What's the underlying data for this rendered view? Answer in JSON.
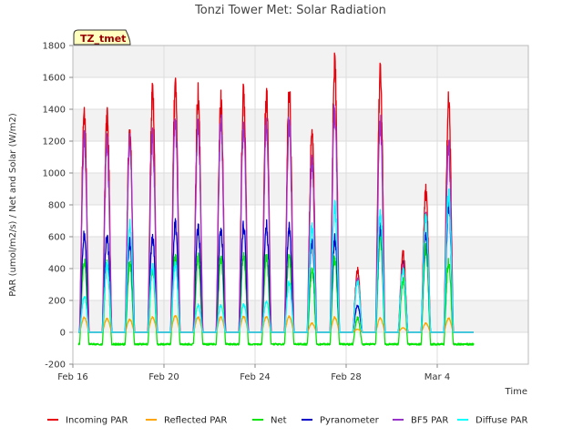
{
  "chart_data": {
    "type": "line",
    "title": "Tonzi Tower Met: Solar Radiation",
    "xlabel": "Time",
    "ylabel": "PAR (umol/m2/s) / Net and Solar (W/m2)",
    "annotation": "TZ_tmet",
    "x_range_days": [
      0,
      20
    ],
    "ylim": [
      -200,
      1800
    ],
    "yticks": [
      -200,
      0,
      200,
      400,
      600,
      800,
      1000,
      1200,
      1400,
      1600,
      1800
    ],
    "xticks": [
      {
        "day": 0,
        "label": "Feb 16"
      },
      {
        "day": 4,
        "label": "Feb 20"
      },
      {
        "day": 8,
        "label": "Feb 24"
      },
      {
        "day": 12,
        "label": "Feb 28"
      },
      {
        "day": 16,
        "label": "Mar 4"
      }
    ],
    "grid": true,
    "legend_position": "bottom",
    "series": [
      {
        "name": "Incoming PAR",
        "color": "#e8000b",
        "daily_peak": [
          1500,
          1440,
          1350,
          1580,
          1630,
          1580,
          1530,
          1590,
          1590,
          1610,
          1310,
          1760,
          410,
          1720,
          520,
          940,
          1530
        ]
      },
      {
        "name": "Reflected PAR",
        "color": "#ffa500",
        "daily_peak": [
          100,
          90,
          85,
          100,
          110,
          100,
          100,
          105,
          105,
          105,
          60,
          100,
          20,
          95,
          30,
          60,
          95
        ]
      },
      {
        "name": "Net",
        "color": "#00e600",
        "daily_peak": [
          480,
          460,
          460,
          420,
          510,
          500,
          500,
          520,
          510,
          510,
          420,
          500,
          100,
          640,
          350,
          560,
          480
        ],
        "night_value": -75
      },
      {
        "name": "Pyranometer",
        "color": "#0000cc",
        "daily_peak": [
          660,
          640,
          600,
          630,
          720,
          690,
          680,
          710,
          710,
          700,
          600,
          620,
          180,
          700,
          450,
          650,
          850
        ]
      },
      {
        "name": "BF5 PAR",
        "color": "#9932cc",
        "daily_peak": [
          1320,
          1250,
          1280,
          1300,
          1400,
          1390,
          1390,
          1390,
          1400,
          1400,
          1130,
          1480,
          350,
          1400,
          430,
          780,
          1230
        ]
      },
      {
        "name": "Diffuse PAR",
        "color": "#00ffff",
        "daily_peak": [
          240,
          450,
          720,
          440,
          450,
          180,
          180,
          190,
          210,
          330,
          700,
          840,
          340,
          780,
          420,
          760,
          930
        ]
      }
    ]
  }
}
